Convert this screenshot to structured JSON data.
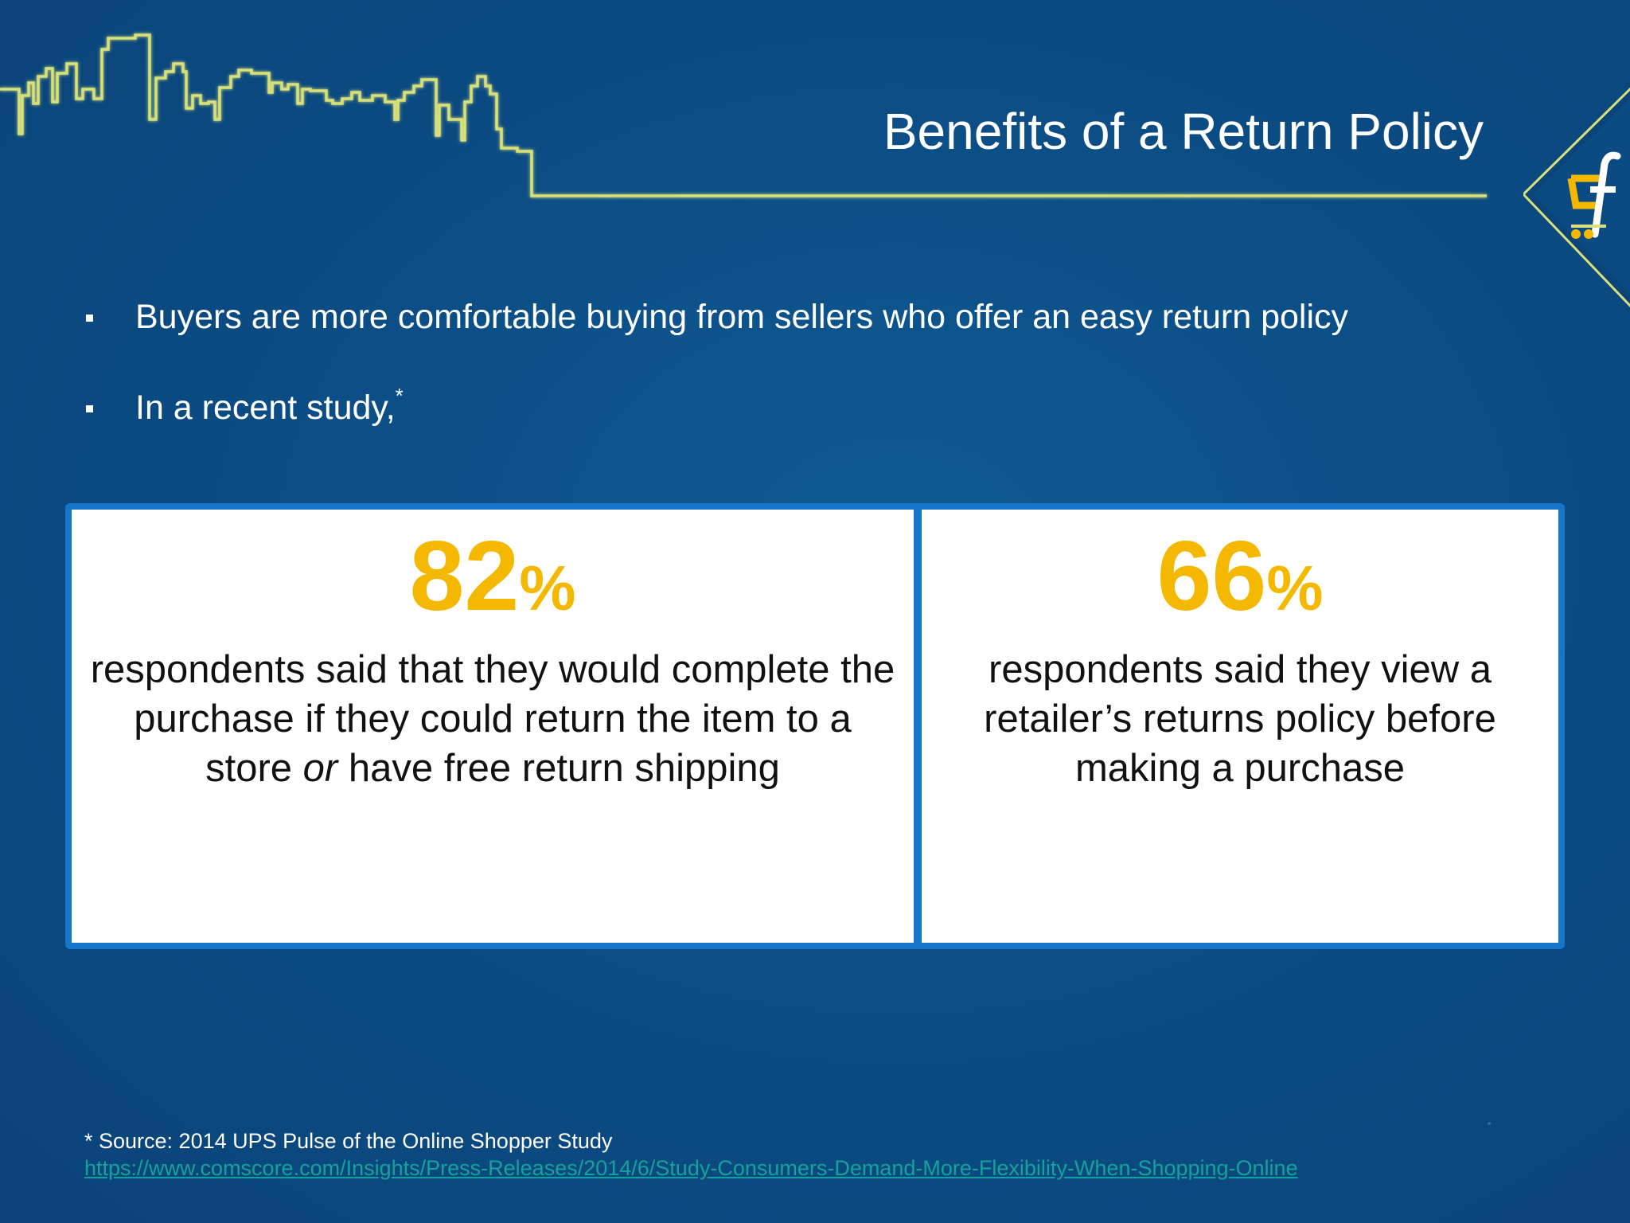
{
  "slide": {
    "title": "Benefits of a Return Policy",
    "bullets": [
      {
        "text": "Buyers are more comfortable buying from sellers who offer an easy return policy",
        "footnote_mark": ""
      },
      {
        "text": "In a recent study,",
        "footnote_mark": "*"
      }
    ],
    "stats": [
      {
        "number": "82",
        "unit": "%",
        "text_before": "respondents said that they would complete the purchase if they could return the item to a store ",
        "text_emphasis": "or",
        "text_after": " have free return shipping"
      },
      {
        "number": "66",
        "unit": "%",
        "text_before": "respondents said they view a retailer’s returns policy before making a purchase",
        "text_emphasis": "",
        "text_after": ""
      }
    ],
    "source": {
      "label": "* Source: 2014 UPS Pulse of the Online Shopper Study",
      "url": "https://www.comscore.com/Insights/Press-Releases/2014/6/Study-Consumers-Demand-More-Flexibility-When-Shopping-Online"
    }
  },
  "colors": {
    "background": "#0d4f86",
    "accent_yellow": "#f5b800",
    "skyline": "#d7e07a",
    "card_border": "#1776c8",
    "link": "#14a39a"
  },
  "icons": {
    "skyline": "city-skyline-graphic",
    "logo": "cart-f-logo-icon"
  }
}
